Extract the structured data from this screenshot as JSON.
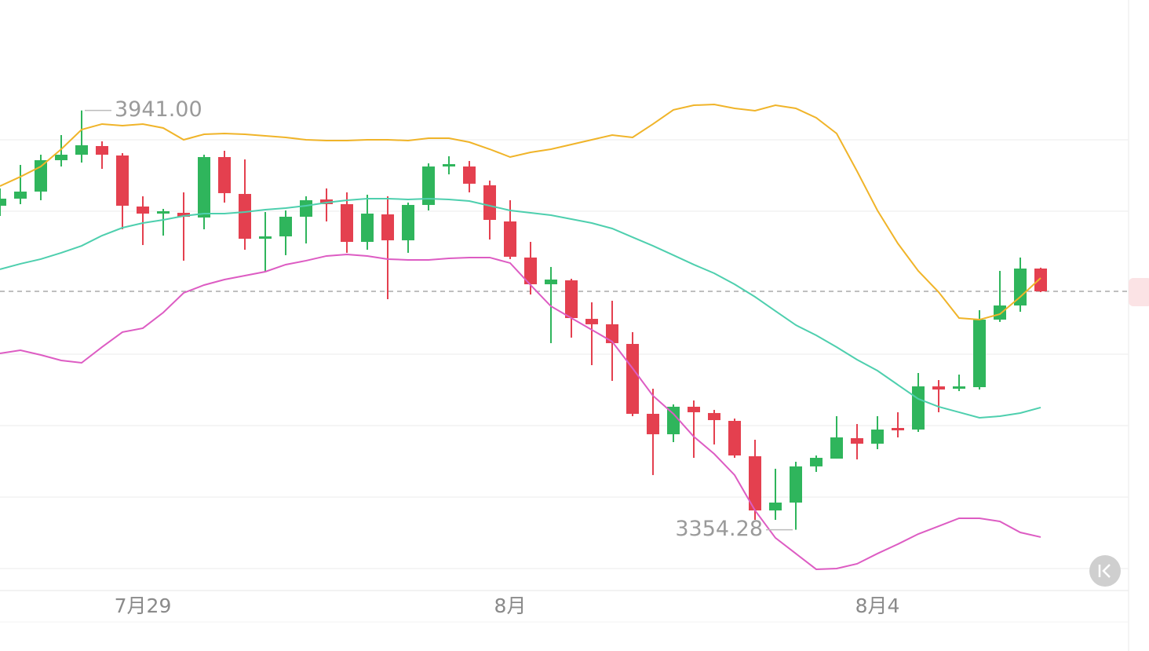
{
  "chart_data": {
    "type": "candlestick",
    "categories": [
      null,
      null,
      null,
      null,
      null,
      null,
      null,
      "7月29",
      null,
      null,
      null,
      null,
      null,
      null,
      null,
      null,
      null,
      null,
      null,
      null,
      null,
      null,
      null,
      null,
      null,
      "8月",
      null,
      null,
      null,
      null,
      null,
      null,
      null,
      null,
      null,
      null,
      null,
      null,
      null,
      null,
      null,
      null,
      null,
      "8月4",
      null,
      null,
      null,
      null,
      null,
      null,
      null,
      null
    ],
    "open": [
      3807.7,
      3817.6,
      3827.5,
      3871.4,
      3879.1,
      3891.2,
      3878.0,
      3806.6,
      3796.7,
      3797.8,
      3791.2,
      3875.8,
      3824.2,
      3761.5,
      3764.8,
      3792.3,
      3816.5,
      3809.9,
      3757.1,
      3795.6,
      3759.3,
      3808.8,
      3862.6,
      3862.6,
      3836.3,
      3785.7,
      3735.2,
      3697.8,
      3703.3,
      3649.4,
      3641.8,
      3614.3,
      3516.5,
      3487.9,
      3526.4,
      3517.6,
      3506.6,
      3457.1,
      3381.3,
      3392.3,
      3442.9,
      3453.8,
      3482.4,
      3474.7,
      3496.7,
      3494.5,
      3554.9,
      3551.6,
      3553.8,
      3648.3,
      3668.1,
      3719.8
    ],
    "high": [
      3831.9,
      3864.8,
      3879.1,
      3906.6,
      3941.0,
      3897.8,
      3881.3,
      3820.9,
      3803.3,
      3826.4,
      3879.1,
      3884.6,
      3872.5,
      3798.9,
      3801.1,
      3820.9,
      3831.9,
      3826.4,
      3823.1,
      3820.9,
      3812.1,
      3867.0,
      3876.9,
      3870.3,
      3842.9,
      3815.4,
      3757.1,
      3722.0,
      3705.5,
      3672.5,
      3674.7,
      3630.8,
      3551.6,
      3529.7,
      3535.2,
      3522.0,
      3509.9,
      3480.2,
      3439.6,
      3449.4,
      3458.2,
      3513.2,
      3502.2,
      3513.2,
      3518.7,
      3573.6,
      3563.7,
      3571.4,
      3661.5,
      3716.5,
      3735.2,
      3721.0
    ],
    "low": [
      3793.4,
      3809.9,
      3815.4,
      3862.6,
      3868.1,
      3859.3,
      3774.7,
      3752.7,
      3765.9,
      3730.8,
      3774.7,
      3812.1,
      3746.1,
      3715.4,
      3738.5,
      3754.9,
      3785.7,
      3741.8,
      3746.1,
      3676.9,
      3741.8,
      3801.1,
      3851.6,
      3826.4,
      3760.4,
      3733.0,
      3683.5,
      3615.4,
      3623.1,
      3584.6,
      3562.6,
      3513.2,
      3430.8,
      3476.9,
      3454.9,
      3473.6,
      3454.9,
      3368.1,
      3368.1,
      3354.28,
      3435.2,
      3453.8,
      3452.7,
      3467.0,
      3483.5,
      3491.2,
      3518.7,
      3548.3,
      3550.5,
      3645.1,
      3659.3,
      3686.8
    ],
    "close": [
      3817.6,
      3827.5,
      3871.4,
      3879.1,
      3892.3,
      3879.1,
      3807.7,
      3796.7,
      3800.0,
      3792.3,
      3875.8,
      3825.3,
      3761.5,
      3764.8,
      3792.3,
      3815.4,
      3809.9,
      3757.1,
      3796.7,
      3759.3,
      3808.8,
      3862.6,
      3865.9,
      3838.5,
      3787.9,
      3736.3,
      3697.8,
      3704.4,
      3650.5,
      3641.8,
      3615.4,
      3516.5,
      3487.9,
      3526.4,
      3518.7,
      3507.7,
      3458.2,
      3381.3,
      3392.3,
      3442.9,
      3454.9,
      3483.5,
      3474.7,
      3494.5,
      3493.4,
      3554.9,
      3550.5,
      3554.9,
      3648.3,
      3668.1,
      3719.8,
      3687.9
    ],
    "up_color": "#2fb55c",
    "down_color": "#e4404f",
    "lines": [
      {
        "color": "#f0b429",
        "values": [
          3835.2,
          3848.3,
          3862.6,
          3886.8,
          3914.3,
          3922.0,
          3919.8,
          3922.0,
          3916.5,
          3900.0,
          3907.7,
          3908.8,
          3907.7,
          3905.5,
          3903.3,
          3900.0,
          3898.9,
          3898.9,
          3900.0,
          3900.0,
          3898.9,
          3902.2,
          3902.2,
          3896.7,
          3886.8,
          3875.8,
          3882.4,
          3886.8,
          3893.4,
          3900.0,
          3906.6,
          3903.3,
          3922.0,
          3941.8,
          3948.3,
          3949.4,
          3944.0,
          3940.7,
          3948.3,
          3944.0,
          3930.8,
          3908.8,
          3856.0,
          3801.1,
          3754.9,
          3716.5,
          3686.8,
          3650.5,
          3648.3,
          3656.0,
          3680.2,
          3706.6
        ]
      },
      {
        "color": "#4ecfae",
        "values": [
          3718.7,
          3726.4,
          3733.0,
          3741.8,
          3751.6,
          3765.9,
          3776.9,
          3783.5,
          3787.9,
          3793.4,
          3796.7,
          3796.7,
          3798.9,
          3802.2,
          3804.4,
          3807.7,
          3812.1,
          3815.4,
          3817.6,
          3817.6,
          3816.5,
          3817.6,
          3816.5,
          3814.3,
          3807.7,
          3801.1,
          3797.8,
          3794.5,
          3789.0,
          3783.5,
          3775.8,
          3763.7,
          3751.6,
          3738.5,
          3725.3,
          3713.2,
          3697.8,
          3680.2,
          3660.4,
          3640.7,
          3626.4,
          3609.9,
          3592.3,
          3576.9,
          3557.1,
          3537.4,
          3526.4,
          3518.7,
          3511.0,
          3513.2,
          3517.6,
          3525.3
        ]
      },
      {
        "color": "#dd5cc3",
        "values": [
          3601.1,
          3605.5,
          3598.9,
          3591.2,
          3587.9,
          3609.9,
          3630.8,
          3636.3,
          3658.2,
          3685.7,
          3696.7,
          3704.4,
          3709.9,
          3715.4,
          3725.3,
          3730.8,
          3737.4,
          3739.6,
          3737.4,
          3733.0,
          3731.9,
          3731.9,
          3734.1,
          3735.2,
          3735.2,
          3727.5,
          3696.7,
          3667.0,
          3650.5,
          3634.1,
          3617.6,
          3580.2,
          3541.8,
          3516.5,
          3484.6,
          3460.4,
          3430.8,
          3381.3,
          3342.9,
          3320.9,
          3298.9,
          3300.0,
          3306.6,
          3320.9,
          3334.1,
          3348.3,
          3359.3,
          3370.3,
          3370.3,
          3365.9,
          3350.5,
          3344.0
        ]
      }
    ],
    "high_label": "3941.00",
    "low_label": "3354.28",
    "current_price": 3687.9,
    "ylim": [
      3269.2,
      4095.6
    ],
    "ygrid": [
      3300,
      3400,
      3500,
      3600,
      3800,
      3900
    ]
  }
}
